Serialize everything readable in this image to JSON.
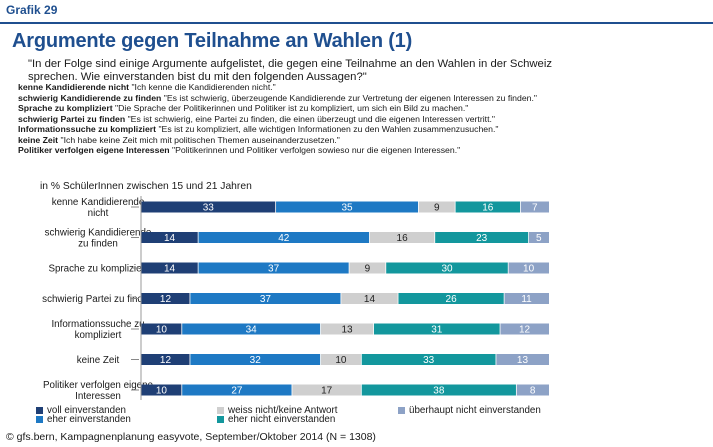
{
  "header": {
    "grafik": "Grafik 29"
  },
  "title": "Argumente gegen Teilnahme an Wahlen (1)",
  "question": "\"In der Folge sind einige Argumente aufgelistet, die gegen eine Teilnahme an den Wahlen in der Schweiz sprechen. Wie einverstanden bist du mit den folgenden Aussagen?\"",
  "definitions": [
    {
      "key": "kenne Kandidierende nicht",
      "text": " \"Ich kenne die Kandidierenden nicht.\""
    },
    {
      "key": "schwierig Kandidierende zu finden",
      "text": " \"Es ist schwierig, überzeugende Kandidierende zur Vertretung der eigenen Interessen zu finden.\""
    },
    {
      "key": "Sprache zu kompliziert",
      "text": " \"Die Sprache der Politikerinnen und Politiker ist zu kompliziert, um sich ein Bild zu machen.\""
    },
    {
      "key": "schwierig Partei zu finden",
      "text": " \"Es ist schwierig, eine Partei zu finden, die einen überzeugt und die eigenen Interessen vertritt.\""
    },
    {
      "key": "Informationssuche zu kompliziert",
      "text": " \"Es ist zu kompliziert, alle wichtigen Informationen zu den Wahlen zusammenzusuchen.\""
    },
    {
      "key": "keine Zeit",
      "text": " \"Ich habe keine Zeit mich mit politischen Themen auseinanderzusetzen.\""
    },
    {
      "key": "Politiker verfolgen eigene Interessen",
      "text": " \"Politikerinnen und Politiker verfolgen sowieso nur die eigenen Interessen.\""
    }
  ],
  "subtitle": "in % SchülerInnen zwischen 15 und 21 Jahren",
  "source": "© gfs.bern, Kampagnenplanung easyvote, September/Oktober 2014 (N = 1308)",
  "chart_data": {
    "type": "bar",
    "stacked": true,
    "orientation": "horizontal",
    "unit": "%",
    "categories": [
      [
        "kenne Kandidierende",
        "nicht"
      ],
      [
        "schwierig Kandidierende",
        "zu finden"
      ],
      [
        "Sprache zu kompliziert"
      ],
      [
        "schwierig Partei zu finden"
      ],
      [
        "Informationssuche zu",
        "kompliziert"
      ],
      [
        "keine Zeit"
      ],
      [
        "Politiker verfolgen eigene",
        "Interessen"
      ]
    ],
    "series": [
      {
        "name": "voll einverstanden",
        "color": "#1f3f75",
        "label_color": "#ffffff",
        "values": [
          33,
          14,
          14,
          12,
          10,
          12,
          10
        ]
      },
      {
        "name": "eher einverstanden",
        "color": "#1e79c4",
        "label_color": "#ffffff",
        "values": [
          35,
          42,
          37,
          37,
          34,
          32,
          27
        ]
      },
      {
        "name": "weiss nicht/keine Antwort",
        "color": "#cfcfcf",
        "label_color": "#222222",
        "values": [
          9,
          16,
          9,
          14,
          13,
          10,
          17
        ]
      },
      {
        "name": "eher nicht einverstanden",
        "color": "#13979d",
        "label_color": "#ffffff",
        "values": [
          16,
          23,
          30,
          26,
          31,
          33,
          38
        ]
      },
      {
        "name": "überhaupt nicht einverstanden",
        "color": "#8da2c6",
        "label_color": "#ffffff",
        "values": [
          7,
          5,
          10,
          11,
          12,
          13,
          8
        ]
      }
    ],
    "legend_placement": "bottom",
    "grid": false
  }
}
